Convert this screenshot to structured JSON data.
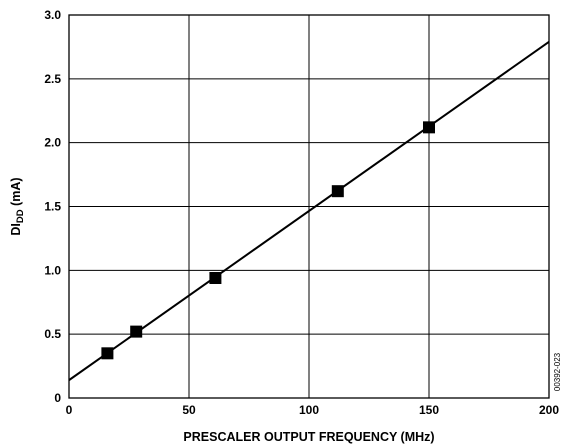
{
  "chart_data": {
    "type": "line",
    "title": "",
    "xlabel": "PRESCALER OUTPUT FREQUENCY (MHz)",
    "ylabel": {
      "main": "DI",
      "subscript": "DD",
      "suffix": " (mA)"
    },
    "xlim": [
      0,
      200
    ],
    "ylim": [
      0,
      3.0
    ],
    "x_ticks": [
      "0",
      "50",
      "100",
      "150",
      "200"
    ],
    "y_ticks": [
      "0",
      "0.5",
      "1.0",
      "1.5",
      "2.0",
      "2.5",
      "3.0"
    ],
    "grid": true,
    "legend": "none",
    "series": [
      {
        "kind": "line",
        "x": [
          0,
          200
        ],
        "y": [
          0.14,
          2.79
        ]
      },
      {
        "kind": "markers",
        "marker": "square",
        "x": [
          16,
          28,
          61,
          112,
          150
        ],
        "y": [
          0.35,
          0.52,
          0.94,
          1.62,
          2.12
        ]
      }
    ],
    "figure_id": "00392-023"
  },
  "colors": {
    "line": "#000000",
    "marker": "#000000",
    "grid": "#000000",
    "background": "#ffffff"
  }
}
